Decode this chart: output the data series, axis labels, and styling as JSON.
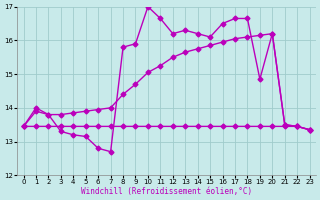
{
  "xlabel": "Windchill (Refroidissement éolien,°C)",
  "xlim": [
    -0.5,
    23.5
  ],
  "ylim": [
    12,
    17
  ],
  "xticks": [
    0,
    1,
    2,
    3,
    4,
    5,
    6,
    7,
    8,
    9,
    10,
    11,
    12,
    13,
    14,
    15,
    16,
    17,
    18,
    19,
    20,
    21,
    22,
    23
  ],
  "yticks": [
    12,
    13,
    14,
    15,
    16,
    17
  ],
  "bg_color": "#c8eaea",
  "grid_color": "#a0cccc",
  "line_color": "#bb00bb",
  "line1_x": [
    0,
    1,
    2,
    3,
    4,
    5,
    6,
    7,
    8,
    9,
    10,
    11,
    12,
    13,
    14,
    15,
    16,
    17,
    18,
    19,
    20,
    21,
    22,
    23
  ],
  "line1_y": [
    13.45,
    13.9,
    13.8,
    13.3,
    13.2,
    13.15,
    12.8,
    12.7,
    15.8,
    15.9,
    17.0,
    16.65,
    16.2,
    16.3,
    16.2,
    16.1,
    16.5,
    16.65,
    16.65,
    14.85,
    16.2,
    13.5,
    13.45,
    13.35
  ],
  "line2_x": [
    0,
    1,
    2,
    3,
    4,
    5,
    6,
    7,
    8,
    9,
    10,
    11,
    12,
    13,
    14,
    15,
    16,
    17,
    18,
    19,
    20,
    21,
    22,
    23
  ],
  "line2_y": [
    13.45,
    14.0,
    13.8,
    13.8,
    13.85,
    13.9,
    13.95,
    14.0,
    14.4,
    14.7,
    15.05,
    15.25,
    15.5,
    15.65,
    15.75,
    15.85,
    15.95,
    16.05,
    16.1,
    16.15,
    16.2,
    13.5,
    13.45,
    13.35
  ],
  "line3_x": [
    0,
    1,
    2,
    3,
    4,
    5,
    6,
    7,
    8,
    9,
    10,
    11,
    12,
    13,
    14,
    15,
    16,
    17,
    18,
    19,
    20,
    21,
    22,
    23
  ],
  "line3_y": [
    13.45,
    13.45,
    13.45,
    13.45,
    13.45,
    13.45,
    13.45,
    13.45,
    13.45,
    13.45,
    13.45,
    13.45,
    13.45,
    13.45,
    13.45,
    13.45,
    13.45,
    13.45,
    13.45,
    13.45,
    13.45,
    13.45,
    13.45,
    13.35
  ],
  "marker": "D",
  "marker_size": 2.5,
  "line_width": 1.0
}
